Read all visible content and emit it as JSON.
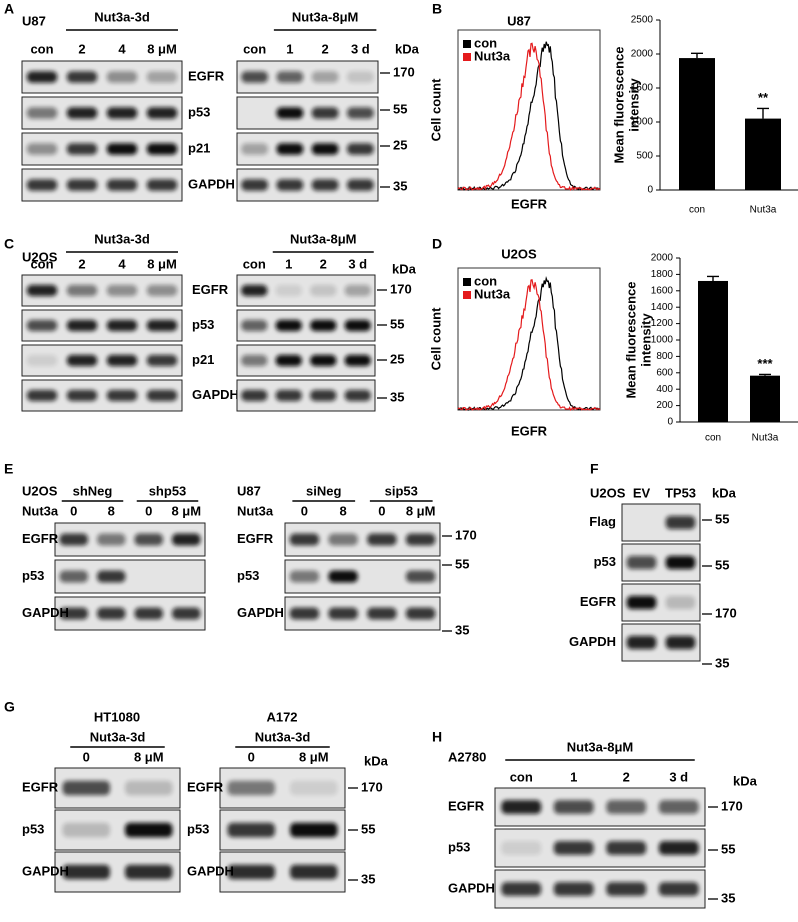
{
  "panels": {
    "A": {
      "letter": "A",
      "cell_line": "U87",
      "proteins": [
        "EGFR",
        "p53",
        "p21",
        "GAPDH"
      ],
      "blots": [
        {
          "treatment": "Nut3a-3d",
          "lanes": [
            "con",
            "2",
            "4",
            "8 μM"
          ]
        },
        {
          "treatment": "Nut3a-8μM",
          "lanes": [
            "con",
            "1",
            "2",
            "3 d"
          ]
        }
      ],
      "marker_unit": "kDa",
      "markers": [
        170,
        55,
        25,
        35
      ]
    },
    "B": {
      "letter": "B",
      "cell_line": "U87",
      "flow": {
        "y_label": "Cell count",
        "x_label": "EGFR",
        "legend": [
          {
            "name": "con",
            "color": "#000000"
          },
          {
            "name": "Nut3a",
            "color": "#e41a1c"
          }
        ]
      },
      "chart_data": {
        "type": "bar",
        "y_label": [
          "Mean fluorescence",
          "intensity"
        ],
        "categories": [
          "con",
          "Nut3a"
        ],
        "values": [
          1940,
          1050
        ],
        "errors": [
          70,
          150
        ],
        "annotations": [
          null,
          "**"
        ],
        "color": "#000000",
        "ylim": [
          0,
          2500
        ],
        "yticks": [
          0,
          500,
          1000,
          1500,
          2000,
          2500
        ]
      }
    },
    "C": {
      "letter": "C",
      "cell_line": "U2OS",
      "proteins": [
        "EGFR",
        "p53",
        "p21",
        "GAPDH"
      ],
      "blots": [
        {
          "treatment": "Nut3a-3d",
          "lanes": [
            "con",
            "2",
            "4",
            "8 μM"
          ]
        },
        {
          "treatment": "Nut3a-8μM",
          "lanes": [
            "con",
            "1",
            "2",
            "3 d"
          ]
        }
      ],
      "marker_unit": "kDa",
      "markers": [
        170,
        55,
        25,
        35
      ]
    },
    "D": {
      "letter": "D",
      "cell_line": "U2OS",
      "flow": {
        "y_label": "Cell count",
        "x_label": "EGFR",
        "legend": [
          {
            "name": "con",
            "color": "#000000"
          },
          {
            "name": "Nut3a",
            "color": "#e41a1c"
          }
        ]
      },
      "chart_data": {
        "type": "bar",
        "y_label": [
          "Mean fluorescence",
          "intensity"
        ],
        "categories": [
          "con",
          "Nut3a"
        ],
        "values": [
          1720,
          565
        ],
        "errors": [
          55,
          15
        ],
        "annotations": [
          null,
          "***"
        ],
        "color": "#000000",
        "ylim": [
          0,
          2000
        ],
        "yticks": [
          0,
          200,
          400,
          600,
          800,
          1000,
          1200,
          1400,
          1600,
          1800,
          2000
        ]
      }
    },
    "E": {
      "letter": "E",
      "proteins": [
        "EGFR",
        "p53",
        "GAPDH"
      ],
      "blots": [
        {
          "cell_line": "U2OS",
          "groups": [
            "shNeg",
            "shp53"
          ],
          "treatment": "Nut3a",
          "lanes": [
            "0",
            "8",
            "0",
            "8 μM"
          ]
        },
        {
          "cell_line": "U87",
          "groups": [
            "siNeg",
            "sip53"
          ],
          "treatment": "Nut3a",
          "lanes": [
            "0",
            "8",
            "0",
            "8 μM"
          ]
        }
      ],
      "markers": [
        170,
        55,
        35
      ]
    },
    "F": {
      "letter": "F",
      "cell_line": "U2OS",
      "lanes": [
        "EV",
        "TP53"
      ],
      "proteins": [
        "Flag",
        "p53",
        "EGFR",
        "GAPDH"
      ],
      "marker_unit": "kDa",
      "markers": [
        55,
        55,
        170,
        35
      ]
    },
    "G": {
      "letter": "G",
      "proteins": [
        "EGFR",
        "p53",
        "GAPDH"
      ],
      "blots": [
        {
          "cell_line": "HT1080",
          "treatment": "Nut3a-3d",
          "lanes": [
            "0",
            "8 μM"
          ]
        },
        {
          "cell_line": "A172",
          "treatment": "Nut3a-3d",
          "lanes": [
            "0",
            "8 μM"
          ]
        }
      ],
      "marker_unit": "kDa",
      "markers": [
        170,
        55,
        35
      ]
    },
    "H": {
      "letter": "H",
      "cell_line": "A2780",
      "treatment": "Nut3a-8μM",
      "lanes": [
        "con",
        "1",
        "2",
        "3 d"
      ],
      "proteins": [
        "EGFR",
        "p53",
        "GAPDH"
      ],
      "marker_unit": "kDa",
      "markers": [
        170,
        55,
        35
      ]
    }
  }
}
